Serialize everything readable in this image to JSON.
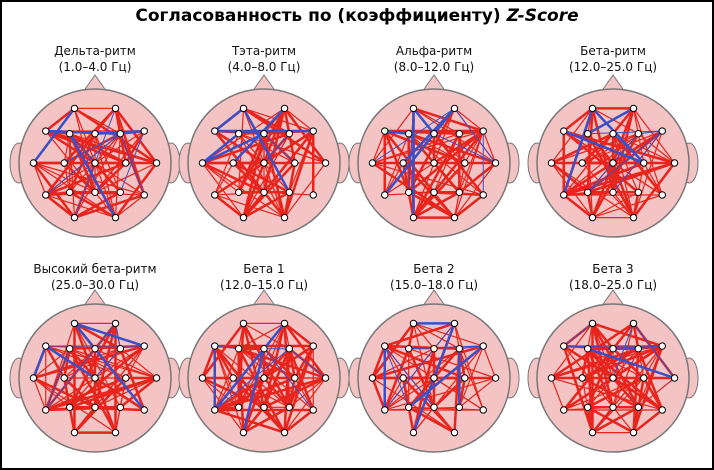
{
  "title": {
    "text": "Согласованность по (коэффициенту)",
    "emphasis": "Z-Score"
  },
  "panels": [
    {
      "name": "Дельта-ритм",
      "range": "(1.0–4.0 Гц)"
    },
    {
      "name": "Тэта-ритм",
      "range": "(4.0–8.0 Гц)"
    },
    {
      "name": "Альфа-ритм",
      "range": "(8.0–12.0 Гц)"
    },
    {
      "name": "Бета-ритм",
      "range": "(12.0–25.0 Гц)"
    },
    {
      "name": "Высокий бета-ритм",
      "range": "(25.0–30.0 Гц)"
    },
    {
      "name": "Бета 1",
      "range": "(12.0–15.0 Гц)"
    },
    {
      "name": "Бета 2",
      "range": "(15.0–18.0 Гц)"
    },
    {
      "name": "Бета 3",
      "range": "(18.0–25.0 Гц)"
    }
  ]
}
